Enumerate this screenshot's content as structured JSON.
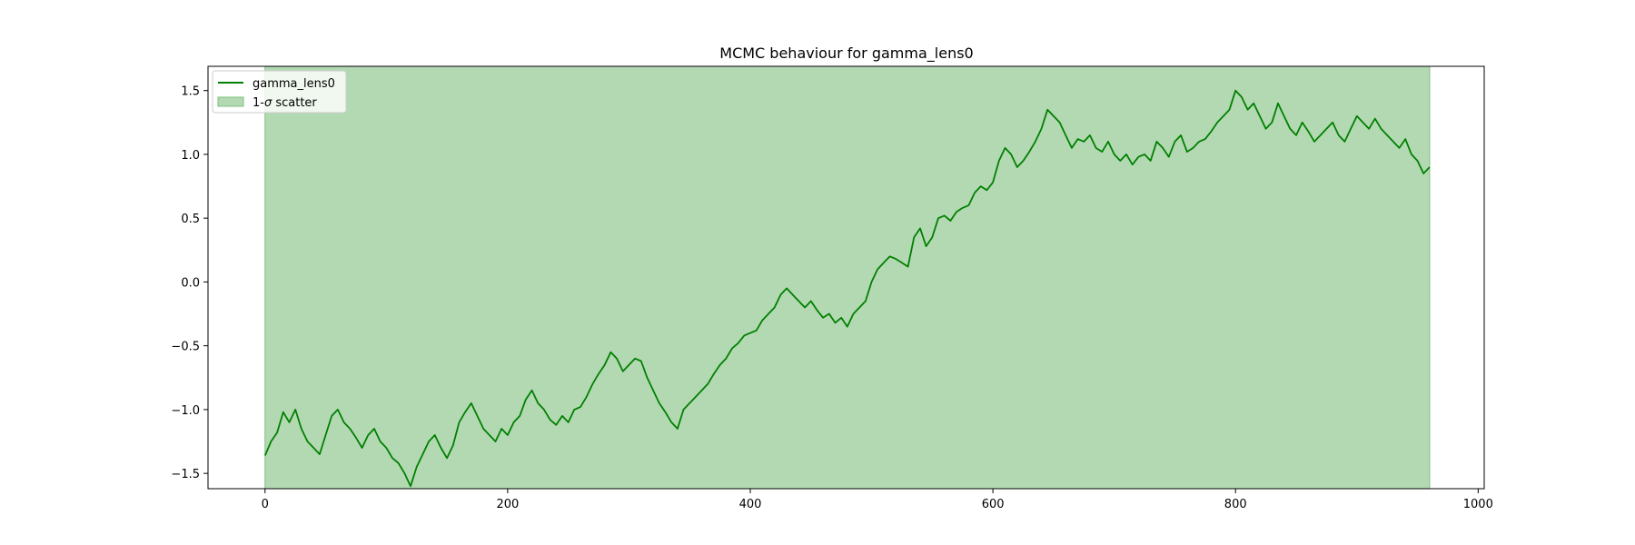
{
  "chart_data": {
    "type": "line",
    "title": "MCMC behaviour for gamma_lens0",
    "xlabel": "",
    "ylabel": "",
    "xlim": [
      -47,
      1005
    ],
    "ylim": [
      -1.62,
      1.69
    ],
    "x_ticks": [
      0,
      200,
      400,
      600,
      800,
      1000
    ],
    "y_ticks": [
      -1.5,
      -1.0,
      -0.5,
      0.0,
      0.5,
      1.0,
      1.5
    ],
    "x_tick_labels": [
      "0",
      "200",
      "400",
      "600",
      "800",
      "1000"
    ],
    "y_tick_labels": [
      "−1.5",
      "−1.0",
      "−0.5",
      "0.0",
      "0.5",
      "1.0",
      "1.5"
    ],
    "grid": false,
    "legend_position": "top-left",
    "legend": {
      "line_label": "gamma_lens0",
      "band_label_prefix": "1-",
      "band_label_symbol": "σ",
      "band_label_suffix": " scatter"
    },
    "band": {
      "x_start": 0,
      "x_end": 960,
      "color": "#b3d9b3",
      "edge_color": "#7fbf7f",
      "note": "1-sigma band fills full visible y-range"
    },
    "series": [
      {
        "name": "gamma_lens0",
        "color": "#008000",
        "points": [
          [
            0,
            -1.36
          ],
          [
            5,
            -1.25
          ],
          [
            10,
            -1.18
          ],
          [
            15,
            -1.02
          ],
          [
            20,
            -1.1
          ],
          [
            25,
            -1.0
          ],
          [
            30,
            -1.15
          ],
          [
            35,
            -1.25
          ],
          [
            40,
            -1.3
          ],
          [
            45,
            -1.35
          ],
          [
            50,
            -1.2
          ],
          [
            55,
            -1.05
          ],
          [
            60,
            -1.0
          ],
          [
            65,
            -1.1
          ],
          [
            70,
            -1.15
          ],
          [
            75,
            -1.22
          ],
          [
            80,
            -1.3
          ],
          [
            85,
            -1.2
          ],
          [
            90,
            -1.15
          ],
          [
            95,
            -1.25
          ],
          [
            100,
            -1.3
          ],
          [
            105,
            -1.38
          ],
          [
            110,
            -1.42
          ],
          [
            115,
            -1.5
          ],
          [
            120,
            -1.6
          ],
          [
            125,
            -1.45
          ],
          [
            130,
            -1.35
          ],
          [
            135,
            -1.25
          ],
          [
            140,
            -1.2
          ],
          [
            145,
            -1.3
          ],
          [
            150,
            -1.38
          ],
          [
            155,
            -1.28
          ],
          [
            160,
            -1.1
          ],
          [
            165,
            -1.02
          ],
          [
            170,
            -0.95
          ],
          [
            175,
            -1.05
          ],
          [
            180,
            -1.15
          ],
          [
            185,
            -1.2
          ],
          [
            190,
            -1.25
          ],
          [
            195,
            -1.15
          ],
          [
            200,
            -1.2
          ],
          [
            205,
            -1.1
          ],
          [
            210,
            -1.05
          ],
          [
            215,
            -0.92
          ],
          [
            220,
            -0.85
          ],
          [
            225,
            -0.95
          ],
          [
            230,
            -1.0
          ],
          [
            235,
            -1.08
          ],
          [
            240,
            -1.12
          ],
          [
            245,
            -1.05
          ],
          [
            250,
            -1.1
          ],
          [
            255,
            -1.0
          ],
          [
            260,
            -0.98
          ],
          [
            265,
            -0.9
          ],
          [
            270,
            -0.8
          ],
          [
            275,
            -0.72
          ],
          [
            280,
            -0.65
          ],
          [
            285,
            -0.55
          ],
          [
            290,
            -0.6
          ],
          [
            295,
            -0.7
          ],
          [
            300,
            -0.65
          ],
          [
            305,
            -0.6
          ],
          [
            310,
            -0.62
          ],
          [
            315,
            -0.75
          ],
          [
            320,
            -0.85
          ],
          [
            325,
            -0.95
          ],
          [
            330,
            -1.02
          ],
          [
            335,
            -1.1
          ],
          [
            340,
            -1.15
          ],
          [
            345,
            -1.0
          ],
          [
            350,
            -0.95
          ],
          [
            355,
            -0.9
          ],
          [
            360,
            -0.85
          ],
          [
            365,
            -0.8
          ],
          [
            370,
            -0.72
          ],
          [
            375,
            -0.65
          ],
          [
            380,
            -0.6
          ],
          [
            385,
            -0.52
          ],
          [
            390,
            -0.48
          ],
          [
            395,
            -0.42
          ],
          [
            400,
            -0.4
          ],
          [
            405,
            -0.38
          ],
          [
            410,
            -0.3
          ],
          [
            415,
            -0.25
          ],
          [
            420,
            -0.2
          ],
          [
            425,
            -0.1
          ],
          [
            430,
            -0.05
          ],
          [
            435,
            -0.1
          ],
          [
            440,
            -0.15
          ],
          [
            445,
            -0.2
          ],
          [
            450,
            -0.15
          ],
          [
            455,
            -0.22
          ],
          [
            460,
            -0.28
          ],
          [
            465,
            -0.25
          ],
          [
            470,
            -0.32
          ],
          [
            475,
            -0.28
          ],
          [
            480,
            -0.35
          ],
          [
            485,
            -0.25
          ],
          [
            490,
            -0.2
          ],
          [
            495,
            -0.15
          ],
          [
            500,
            0.0
          ],
          [
            505,
            0.1
          ],
          [
            510,
            0.15
          ],
          [
            515,
            0.2
          ],
          [
            520,
            0.18
          ],
          [
            525,
            0.15
          ],
          [
            530,
            0.12
          ],
          [
            535,
            0.35
          ],
          [
            540,
            0.42
          ],
          [
            545,
            0.28
          ],
          [
            550,
            0.35
          ],
          [
            555,
            0.5
          ],
          [
            560,
            0.52
          ],
          [
            565,
            0.48
          ],
          [
            570,
            0.55
          ],
          [
            575,
            0.58
          ],
          [
            580,
            0.6
          ],
          [
            585,
            0.7
          ],
          [
            590,
            0.75
          ],
          [
            595,
            0.72
          ],
          [
            600,
            0.78
          ],
          [
            605,
            0.95
          ],
          [
            610,
            1.05
          ],
          [
            615,
            1.0
          ],
          [
            620,
            0.9
          ],
          [
            625,
            0.95
          ],
          [
            630,
            1.02
          ],
          [
            635,
            1.1
          ],
          [
            640,
            1.2
          ],
          [
            645,
            1.35
          ],
          [
            650,
            1.3
          ],
          [
            655,
            1.25
          ],
          [
            660,
            1.15
          ],
          [
            665,
            1.05
          ],
          [
            670,
            1.12
          ],
          [
            675,
            1.1
          ],
          [
            680,
            1.15
          ],
          [
            685,
            1.05
          ],
          [
            690,
            1.02
          ],
          [
            695,
            1.1
          ],
          [
            700,
            1.0
          ],
          [
            705,
            0.95
          ],
          [
            710,
            1.0
          ],
          [
            715,
            0.92
          ],
          [
            720,
            0.98
          ],
          [
            725,
            1.0
          ],
          [
            730,
            0.95
          ],
          [
            735,
            1.1
          ],
          [
            740,
            1.05
          ],
          [
            745,
            0.98
          ],
          [
            750,
            1.1
          ],
          [
            755,
            1.15
          ],
          [
            760,
            1.02
          ],
          [
            765,
            1.05
          ],
          [
            770,
            1.1
          ],
          [
            775,
            1.12
          ],
          [
            780,
            1.18
          ],
          [
            785,
            1.25
          ],
          [
            790,
            1.3
          ],
          [
            795,
            1.35
          ],
          [
            800,
            1.5
          ],
          [
            805,
            1.45
          ],
          [
            810,
            1.35
          ],
          [
            815,
            1.4
          ],
          [
            820,
            1.3
          ],
          [
            825,
            1.2
          ],
          [
            830,
            1.25
          ],
          [
            835,
            1.4
          ],
          [
            840,
            1.3
          ],
          [
            845,
            1.2
          ],
          [
            850,
            1.15
          ],
          [
            855,
            1.25
          ],
          [
            860,
            1.18
          ],
          [
            865,
            1.1
          ],
          [
            870,
            1.15
          ],
          [
            875,
            1.2
          ],
          [
            880,
            1.25
          ],
          [
            885,
            1.15
          ],
          [
            890,
            1.1
          ],
          [
            895,
            1.2
          ],
          [
            900,
            1.3
          ],
          [
            905,
            1.25
          ],
          [
            910,
            1.2
          ],
          [
            915,
            1.28
          ],
          [
            920,
            1.2
          ],
          [
            925,
            1.15
          ],
          [
            930,
            1.1
          ],
          [
            935,
            1.05
          ],
          [
            940,
            1.12
          ],
          [
            945,
            1.0
          ],
          [
            950,
            0.95
          ],
          [
            955,
            0.85
          ],
          [
            960,
            0.9
          ]
        ]
      }
    ]
  }
}
